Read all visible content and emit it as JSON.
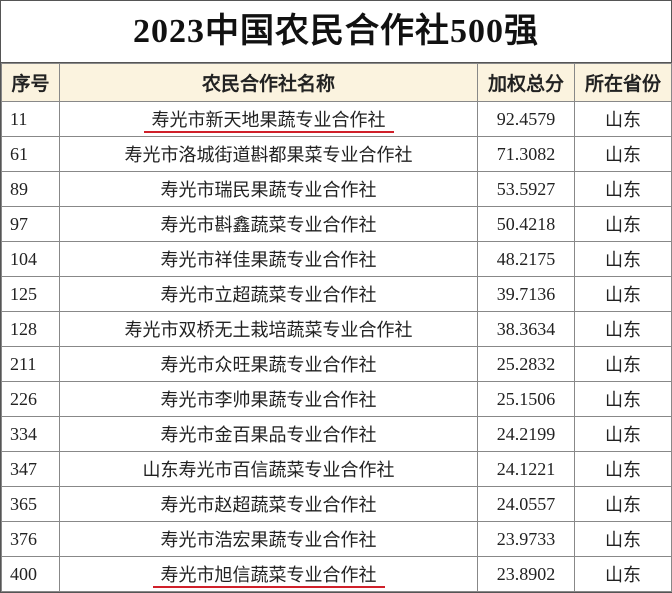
{
  "title": "2023中国农民合作社500强",
  "table": {
    "columns": [
      "序号",
      "农民合作社名称",
      "加权总分",
      "所在省份"
    ],
    "rows": [
      [
        "11",
        "寿光市新天地果蔬专业合作社",
        "92.4579",
        "山东"
      ],
      [
        "61",
        "寿光市洛城街道斟都果菜专业合作社",
        "71.3082",
        "山东"
      ],
      [
        "89",
        "寿光市瑞民果蔬专业合作社",
        "53.5927",
        "山东"
      ],
      [
        "97",
        "寿光市斟鑫蔬菜专业合作社",
        "50.4218",
        "山东"
      ],
      [
        "104",
        "寿光市祥佳果蔬专业合作社",
        "48.2175",
        "山东"
      ],
      [
        "125",
        "寿光市立超蔬菜专业合作社",
        "39.7136",
        "山东"
      ],
      [
        "128",
        "寿光市双桥无土栽培蔬菜专业合作社",
        "38.3634",
        "山东"
      ],
      [
        "211",
        "寿光市众旺果蔬专业合作社",
        "25.2832",
        "山东"
      ],
      [
        "226",
        "寿光市李帅果蔬专业合作社",
        "25.1506",
        "山东"
      ],
      [
        "334",
        "寿光市金百果品专业合作社",
        "24.2199",
        "山东"
      ],
      [
        "347",
        "山东寿光市百信蔬菜专业合作社",
        "24.1221",
        "山东"
      ],
      [
        "365",
        "寿光市赵超蔬菜专业合作社",
        "24.0557",
        "山东"
      ],
      [
        "376",
        "寿光市浩宏果蔬专业合作社",
        "23.9733",
        "山东"
      ],
      [
        "400",
        "寿光市旭信蔬菜专业合作社",
        "23.8902",
        "山东"
      ]
    ]
  }
}
